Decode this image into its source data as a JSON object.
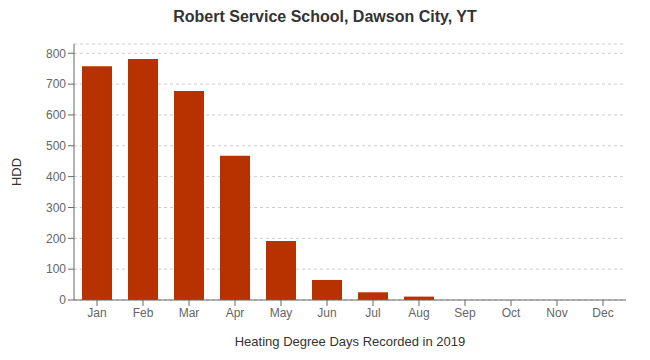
{
  "chart_data": {
    "type": "bar",
    "title": "Robert Service School, Dawson City, YT",
    "xlabel": "Heating Degree Days Recorded in 2019",
    "ylabel": "HDD",
    "categories": [
      "Jan",
      "Feb",
      "Mar",
      "Apr",
      "May",
      "Jun",
      "Jul",
      "Aug",
      "Sep",
      "Oct",
      "Nov",
      "Dec"
    ],
    "values": [
      758,
      781,
      678,
      468,
      191,
      65,
      25,
      11,
      0,
      0,
      0,
      0
    ],
    "color": "#b83200",
    "ylim": [
      0,
      830
    ],
    "yticks": [
      0,
      100,
      200,
      300,
      400,
      500,
      600,
      700,
      800
    ],
    "grid": true
  }
}
